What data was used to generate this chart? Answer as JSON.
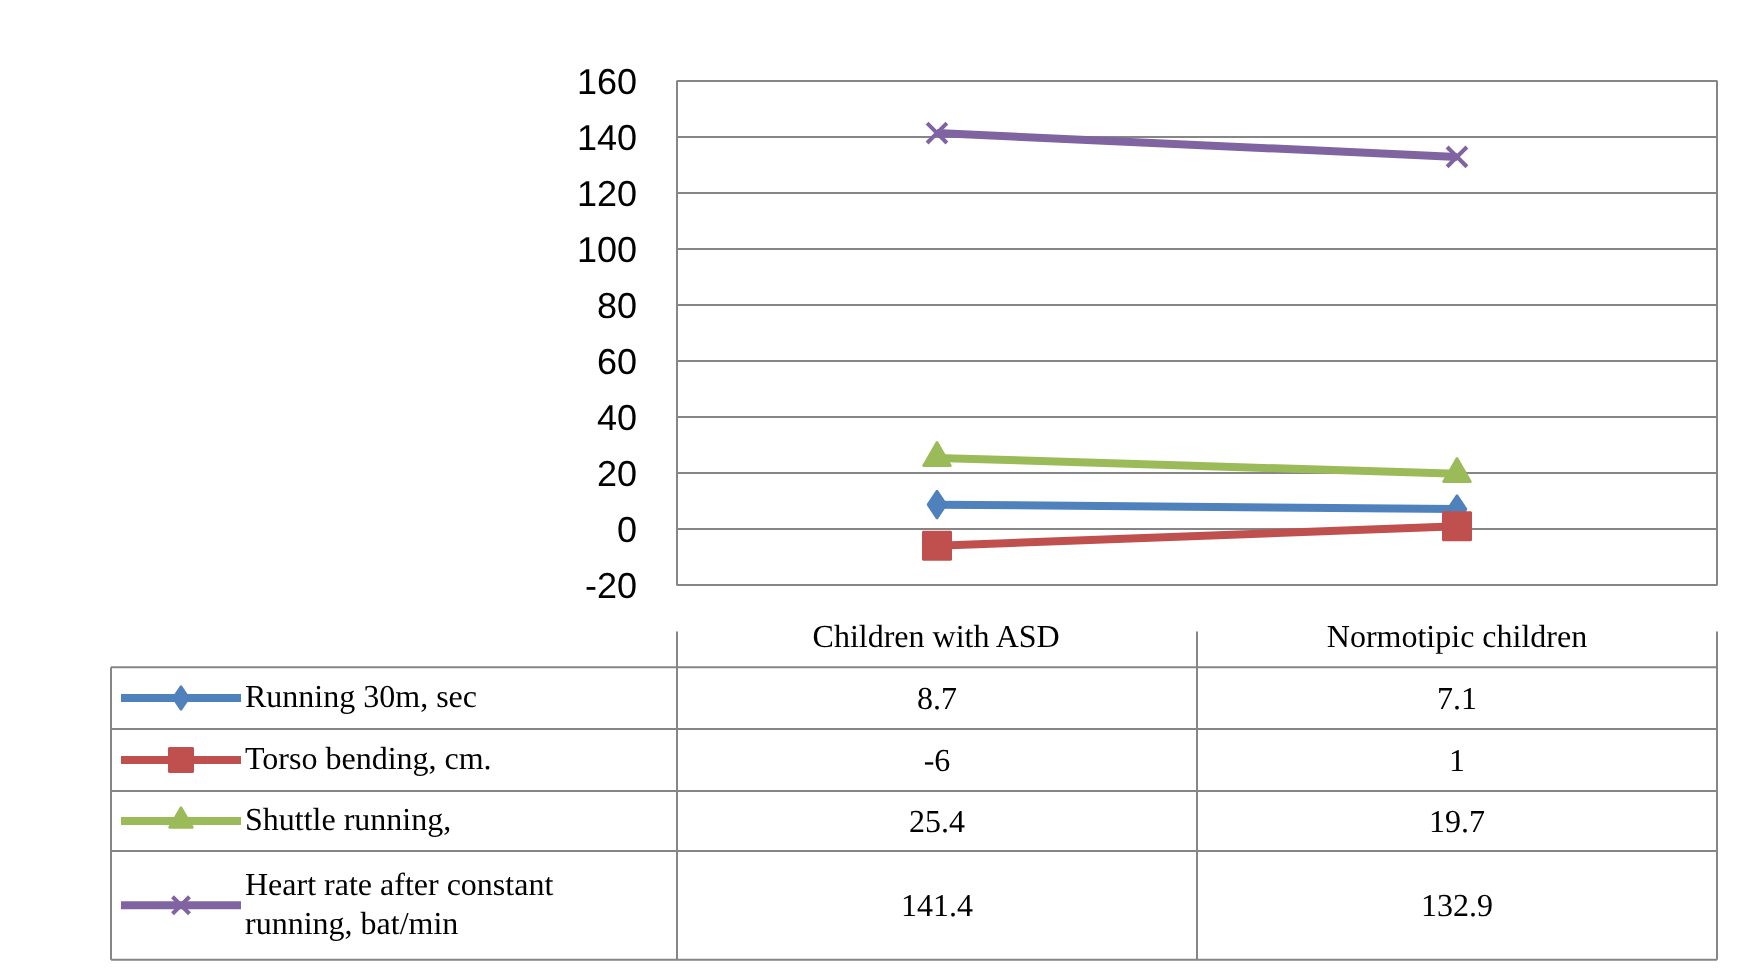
{
  "chart_data": {
    "type": "line",
    "categories": [
      "Children with ASD",
      "Normotipic children"
    ],
    "series": [
      {
        "name": "Running 30m, sec",
        "color": "#4f81bd",
        "marker": "diamond",
        "values": [
          8.7,
          7.1
        ]
      },
      {
        "name": "Torso bending, cm.",
        "color": "#c0504d",
        "marker": "square",
        "values": [
          -6,
          1
        ]
      },
      {
        "name": "Shuttle running,",
        "color": "#9bbb59",
        "marker": "triangle",
        "values": [
          25.4,
          19.7
        ]
      },
      {
        "name": "Heart rate after constant running, bat/min",
        "color": "#8064a2",
        "marker": "cross",
        "values": [
          141.4,
          132.9
        ]
      }
    ],
    "ylim": [
      -20,
      160
    ],
    "yticks": [
      -20,
      0,
      20,
      40,
      60,
      80,
      100,
      120,
      140,
      160
    ],
    "grid": "y",
    "legend": "bottom",
    "data_labels": true
  }
}
